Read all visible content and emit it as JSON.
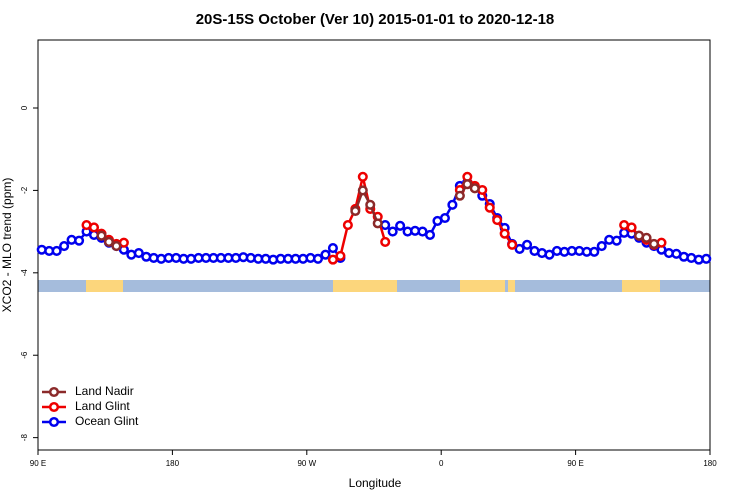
{
  "chart_data": {
    "type": "line",
    "title": "20S-15S October (Ver 10)   2015-01-01 to 2020-12-18",
    "x_label": "Longitude",
    "y_label": "XCO2 - MLO trend (ppm)",
    "xlim": [
      90,
      540
    ],
    "xticks": [
      {
        "value": 90,
        "label": "90 E"
      },
      {
        "value": 180,
        "label": "180"
      },
      {
        "value": 270,
        "label": "90 W"
      },
      {
        "value": 360,
        "label": "0"
      },
      {
        "value": 450,
        "label": "90 E"
      },
      {
        "value": 540,
        "label": "180"
      }
    ],
    "ylim": [
      -8.3,
      1.65
    ],
    "yticks": [
      0,
      -2,
      -4,
      -6,
      -8
    ],
    "legend": "lower left",
    "x": [
      92.5,
      97.5,
      102.5,
      107.5,
      112.5,
      117.5,
      122.5,
      127.5,
      132.5,
      137.5,
      142.5,
      147.5,
      152.5,
      157.5,
      162.5,
      167.5,
      172.5,
      177.5,
      182.5,
      187.5,
      192.5,
      197.5,
      202.5,
      207.5,
      212.5,
      217.5,
      222.5,
      227.5,
      232.5,
      237.5,
      242.5,
      247.5,
      252.5,
      257.5,
      262.5,
      267.5,
      272.5,
      277.5,
      282.5,
      287.5,
      292.5,
      297.5,
      302.5,
      307.5,
      312.5,
      317.5,
      322.5,
      327.5,
      332.5,
      337.5,
      342.5,
      347.5,
      352.5,
      357.5,
      362.5,
      367.5,
      372.5,
      377.5,
      382.5,
      387.5,
      392.5,
      397.5,
      402.5,
      407.5,
      412.5,
      417.5,
      422.5,
      427.5,
      432.5,
      437.5,
      442.5,
      447.5,
      452.5,
      457.5,
      462.5,
      467.5,
      472.5,
      477.5,
      482.5,
      487.5,
      492.5,
      497.5,
      502.5,
      507.5,
      512.5,
      517.5,
      522.5,
      527.5,
      532.5,
      537.5
    ],
    "series": [
      {
        "name": "Land Nadir",
        "color": "#8b2a2a",
        "values": [
          null,
          null,
          null,
          null,
          null,
          null,
          null,
          null,
          -3.1,
          -3.25,
          -3.35,
          null,
          null,
          null,
          null,
          null,
          null,
          null,
          null,
          null,
          null,
          null,
          null,
          null,
          null,
          null,
          null,
          null,
          null,
          null,
          null,
          null,
          null,
          null,
          null,
          null,
          null,
          null,
          null,
          null,
          null,
          null,
          -2.5,
          -2.0,
          -2.35,
          -2.8,
          null,
          null,
          null,
          null,
          null,
          null,
          null,
          null,
          null,
          null,
          -2.13,
          -1.85,
          -1.95,
          null,
          null,
          null,
          null,
          null,
          null,
          null,
          null,
          null,
          null,
          null,
          null,
          null,
          null,
          null,
          null,
          null,
          null,
          null,
          null,
          null,
          -3.1,
          -3.15,
          -3.3,
          null,
          null,
          null,
          null,
          null,
          null,
          null
        ]
      },
      {
        "name": "Land Glint",
        "color": "#ee0000",
        "values": [
          null,
          null,
          null,
          null,
          null,
          null,
          -2.84,
          -2.9,
          -3.05,
          -3.2,
          -3.3,
          -3.27,
          null,
          null,
          null,
          null,
          null,
          null,
          null,
          null,
          null,
          null,
          null,
          null,
          null,
          null,
          null,
          null,
          null,
          null,
          null,
          null,
          null,
          null,
          null,
          null,
          null,
          null,
          null,
          -3.68,
          -3.59,
          -2.84,
          -2.45,
          -1.67,
          -2.45,
          -2.64,
          -3.25,
          null,
          null,
          null,
          null,
          null,
          null,
          null,
          null,
          null,
          -1.99,
          -1.67,
          -1.89,
          -1.99,
          -2.42,
          -2.72,
          -3.05,
          -3.32,
          null,
          null,
          null,
          null,
          null,
          null,
          null,
          null,
          null,
          null,
          null,
          null,
          null,
          null,
          -2.84,
          -2.9,
          -3.1,
          -3.2,
          -3.32,
          -3.27,
          null,
          null,
          null,
          null,
          null,
          null
        ]
      },
      {
        "name": "Ocean Glint",
        "color": "#0000ee",
        "values": [
          -3.44,
          -3.47,
          -3.47,
          -3.35,
          -3.2,
          -3.22,
          -3.0,
          -3.08,
          -3.15,
          -3.27,
          -3.35,
          -3.44,
          -3.56,
          -3.52,
          -3.61,
          -3.64,
          -3.66,
          -3.64,
          -3.64,
          -3.66,
          -3.66,
          -3.64,
          -3.64,
          -3.64,
          -3.64,
          -3.64,
          -3.64,
          -3.62,
          -3.64,
          -3.66,
          -3.66,
          -3.68,
          -3.66,
          -3.66,
          -3.66,
          -3.66,
          -3.64,
          -3.66,
          -3.56,
          -3.4,
          -3.64,
          null,
          null,
          null,
          null,
          null,
          -2.84,
          -3.0,
          -2.86,
          -3.0,
          -2.98,
          -3.0,
          -3.08,
          -2.74,
          -2.67,
          -2.35,
          -1.89,
          -1.8,
          -1.94,
          -2.13,
          -2.33,
          -2.67,
          -2.91,
          -3.3,
          -3.42,
          -3.32,
          -3.47,
          -3.52,
          -3.56,
          -3.47,
          -3.49,
          -3.47,
          -3.47,
          -3.49,
          -3.49,
          -3.35,
          -3.2,
          -3.22,
          -3.03,
          -3.05,
          -3.15,
          -3.27,
          -3.35,
          -3.44,
          -3.52,
          -3.54,
          -3.61,
          -3.64,
          -3.68,
          -3.66
        ]
      }
    ]
  }
}
